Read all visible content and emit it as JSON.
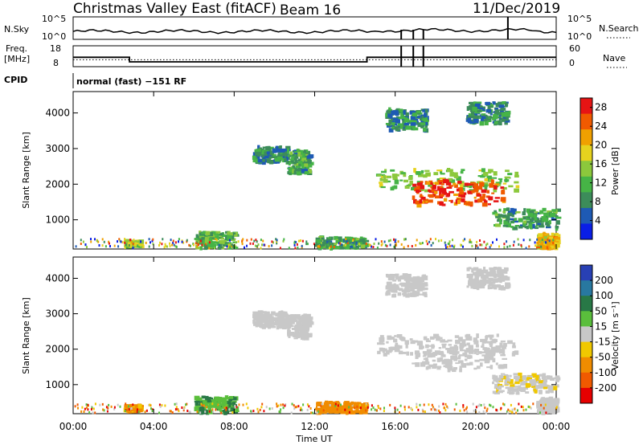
{
  "chart_data": {
    "type": "heatmap",
    "title": "Christmas Valley East (fitACF)",
    "beam": "Beam 16",
    "date": "11/Dec/2019",
    "cpid_label": "CPID",
    "cpid_text": "normal (fast) −151 RF",
    "x_ticks": [
      "00:00",
      "04:00",
      "08:00",
      "12:00",
      "16:00",
      "20:00",
      "00:00"
    ],
    "xlabel": "Time UT",
    "xlim_hours": [
      0,
      24
    ],
    "status_panels": {
      "noise": {
        "left_label": "N.Sky",
        "right_label": "N.Search",
        "left_ticks": [
          "10^5",
          "10^0"
        ],
        "right_ticks": [
          "10^5",
          "10^0"
        ],
        "sky_level": 0.35,
        "search_spikes_hours": [
          16.3,
          16.9,
          17.4,
          21.6
        ]
      },
      "freq": {
        "left_label_top": "Freq.",
        "left_label_bottom": "[MHz]",
        "right_label": "Nave",
        "left_ticks": [
          "18",
          "8"
        ],
        "right_ticks": [
          "60",
          "0"
        ],
        "freq_mhz": [
          {
            "from": 0,
            "to": 2.8,
            "value": 12.5
          },
          {
            "from": 2.8,
            "to": 14.6,
            "value": 10.3
          },
          {
            "from": 14.6,
            "to": 24,
            "value": 12.5
          }
        ],
        "nave": 20
      }
    },
    "power_panel": {
      "ylabel": "Slant Range [km]",
      "yticks": [
        1000,
        2000,
        3000,
        4000
      ],
      "ylim": [
        180,
        4600
      ],
      "colorbar_label": "Power [dB]",
      "colorbar_ticks": [
        4,
        8,
        12,
        16,
        20,
        24,
        28
      ],
      "colorbar_range": [
        0,
        30
      ],
      "colorbar_colors": [
        "#0a1ee6",
        "#1e5ab4",
        "#3c8c5a",
        "#46b446",
        "#8cc83c",
        "#e6d21e",
        "#f0a000",
        "#f05a00",
        "#e61414"
      ]
    },
    "velocity_panel": {
      "ylabel": "Slant Range [km]",
      "yticks": [
        1000,
        2000,
        3000,
        4000
      ],
      "ylim": [
        180,
        4600
      ],
      "colorbar_label": "Velocity [m s⁻¹]",
      "colorbar_ticks": [
        200,
        100,
        50,
        15,
        -15,
        -50,
        -100,
        -200
      ],
      "colorbar_colors": [
        "#2840b4",
        "#2878a0",
        "#287846",
        "#5abe3c",
        "#c8c8c8",
        "#f0c800",
        "#f08c00",
        "#f05a00",
        "#e60000"
      ]
    },
    "echo_regions": [
      {
        "t0": 8.9,
        "t1": 10.6,
        "r0": 2600,
        "r1": 3050,
        "power": 8,
        "vel": 0
      },
      {
        "t0": 10.6,
        "t1": 11.7,
        "r0": 2300,
        "r1": 2950,
        "power": 10,
        "vel": 0
      },
      {
        "t0": 15.0,
        "t1": 22.0,
        "r0": 1800,
        "r1": 2400,
        "power": 14,
        "vel": 0
      },
      {
        "t0": 16.8,
        "t1": 21.4,
        "r0": 1400,
        "r1": 2100,
        "power": 26,
        "vel": 0
      },
      {
        "t0": 20.8,
        "t1": 24.0,
        "r0": 750,
        "r1": 1300,
        "power": 10,
        "vel": -10
      },
      {
        "t0": 23.0,
        "t1": 24.0,
        "r0": 200,
        "r1": 600,
        "power": 20,
        "vel": -5
      },
      {
        "t0": 6.0,
        "t1": 8.0,
        "r0": 200,
        "r1": 650,
        "power": 12,
        "vel": 30
      },
      {
        "t0": 2.5,
        "t1": 3.3,
        "r0": 250,
        "r1": 400,
        "power": 16,
        "vel": -40
      },
      {
        "t0": 12.0,
        "t1": 14.5,
        "r0": 200,
        "r1": 500,
        "power": 10,
        "vel": -60
      },
      {
        "t0": 15.5,
        "t1": 17.5,
        "r0": 3500,
        "r1": 4100,
        "power": 8,
        "vel": 0
      },
      {
        "t0": 19.5,
        "t1": 21.5,
        "r0": 3700,
        "r1": 4300,
        "power": 8,
        "vel": 0
      }
    ]
  }
}
